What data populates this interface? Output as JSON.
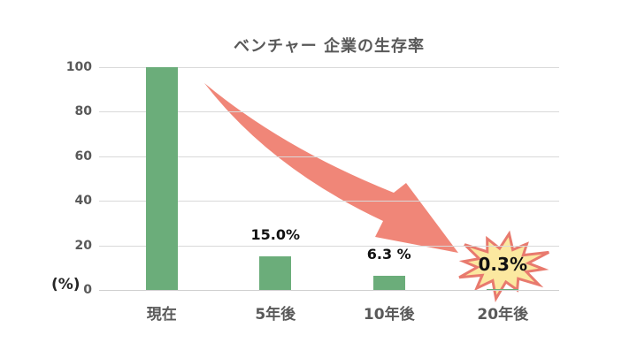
{
  "chart_data": {
    "type": "bar",
    "title": "ベンチャー 企業の生存率",
    "unit_label": "(%)",
    "categories": [
      "現在",
      "5年後",
      "10年後",
      "20年後"
    ],
    "values": [
      100,
      15.0,
      6.3,
      0.3
    ],
    "bar_labels": [
      "",
      "15.0%",
      "6.3 %",
      ""
    ],
    "highlight_label": "0.3%",
    "xlabel": "",
    "ylabel": "(%)",
    "ylim": [
      0,
      100
    ],
    "yticks": [
      0,
      20,
      40,
      60,
      80,
      100
    ],
    "grid": "horizontal",
    "legend": "none",
    "colors": {
      "bar": "#6bad7a",
      "arrow": "#f08678",
      "burst_fill": "#fbe8a0",
      "burst_stroke": "#e87a6e",
      "gridline": "#d9d9d9",
      "axis_text": "#595959",
      "label_text": "#111111"
    }
  }
}
